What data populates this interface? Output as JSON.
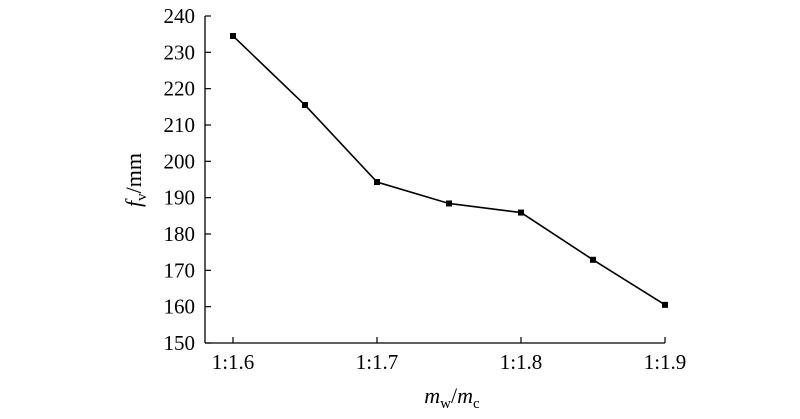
{
  "chart_data": {
    "type": "line",
    "title": "",
    "xlabel": {
      "var1": "m",
      "sub1": "w",
      "sep": "/",
      "var2": "m",
      "sub2": "c"
    },
    "ylabel": {
      "var": "f",
      "sub": "v",
      "unit": "/mm"
    },
    "x": [
      1.6,
      1.65,
      1.7,
      1.75,
      1.8,
      1.85,
      1.9
    ],
    "xticks": [
      1.6,
      1.7,
      1.8,
      1.9
    ],
    "xtick_labels": [
      "1:1.6",
      "1:1.7",
      "1:1.8",
      "1:1.9"
    ],
    "xlim": [
      1.6,
      1.9
    ],
    "ylim": [
      150,
      240
    ],
    "yticks": [
      150,
      160,
      170,
      180,
      190,
      200,
      210,
      220,
      230,
      240
    ],
    "ytick_labels": [
      "150",
      "160",
      "170",
      "180",
      "190",
      "200",
      "210",
      "220",
      "230",
      "240"
    ],
    "series": [
      {
        "values": [
          234.5,
          215.5,
          194.3,
          188.4,
          185.9,
          172.9,
          160.5
        ],
        "color": "#000000",
        "marker": "square"
      }
    ],
    "grid": false,
    "legend": "none"
  }
}
